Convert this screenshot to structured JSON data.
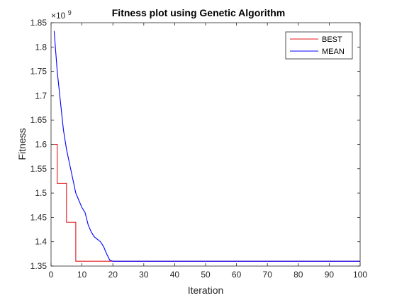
{
  "chart_data": {
    "type": "line",
    "title": "Fitness plot using Genetic Algorithm",
    "xlabel": "Iteration",
    "ylabel": "Fitness",
    "xlim": [
      0,
      100
    ],
    "ylim": [
      1.35,
      1.85
    ],
    "scale_exponent_label": "×10",
    "scale_exponent": "9",
    "xticks": [
      0,
      10,
      20,
      30,
      40,
      50,
      60,
      70,
      80,
      90,
      100
    ],
    "yticks": [
      1.35,
      1.4,
      1.45,
      1.5,
      1.55,
      1.6,
      1.65,
      1.7,
      1.75,
      1.8,
      1.85
    ],
    "grid": false,
    "legend_position": "top-right",
    "series": [
      {
        "name": "BEST",
        "color": "#e41a1c",
        "x": [
          1,
          2,
          2,
          4,
          4,
          5,
          5,
          7,
          7,
          8,
          8,
          100
        ],
        "y": [
          1.6,
          1.6,
          1.52,
          1.52,
          1.52,
          1.52,
          1.44,
          1.44,
          1.44,
          1.44,
          1.36,
          1.36
        ]
      },
      {
        "name": "MEAN",
        "color": "#0000ff",
        "x": [
          1,
          2,
          3,
          4,
          5,
          6,
          7,
          8,
          9,
          10,
          11,
          12,
          13,
          14,
          15,
          16,
          17,
          18,
          19,
          20,
          100
        ],
        "y": [
          1.833,
          1.75,
          1.69,
          1.63,
          1.59,
          1.56,
          1.53,
          1.5,
          1.485,
          1.47,
          1.46,
          1.435,
          1.42,
          1.41,
          1.405,
          1.4,
          1.39,
          1.375,
          1.362,
          1.36,
          1.36
        ]
      }
    ]
  }
}
